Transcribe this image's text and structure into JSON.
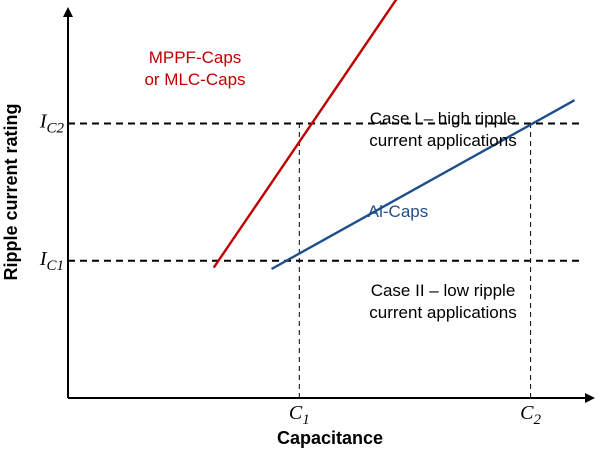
{
  "chart_data": {
    "type": "line",
    "title": "",
    "xlabel": "Capacitance",
    "ylabel": "Ripple current rating",
    "x_ticks": [
      {
        "main": "C",
        "sub": "1",
        "x": 1
      },
      {
        "main": "C",
        "sub": "2",
        "x": 2
      }
    ],
    "y_ticks": [
      {
        "main": "I",
        "sub": "C1",
        "y": 1
      },
      {
        "main": "I",
        "sub": "C2",
        "y": 2
      }
    ],
    "xlim": [
      0,
      2.3
    ],
    "ylim": [
      0,
      2.9
    ],
    "grid": false,
    "reference_lines": [
      {
        "orientation": "horizontal",
        "value": 2,
        "style": "dashed",
        "extent": "full"
      },
      {
        "orientation": "horizontal",
        "value": 1,
        "style": "dashed",
        "extent": "full"
      },
      {
        "orientation": "vertical",
        "value": 1,
        "style": "dashed",
        "extent": "to-crossing"
      },
      {
        "orientation": "vertical",
        "value": 2,
        "style": "dashed",
        "extent": "to-crossing"
      }
    ],
    "series": [
      {
        "name": "MPPF-Caps or MLC-Caps",
        "color": "#c00000",
        "points": [
          [
            0.63,
            0.95
          ],
          [
            1.45,
            2.98
          ]
        ]
      },
      {
        "name": "Al-Caps",
        "color": "#1f4e8c",
        "points": [
          [
            0.88,
            0.94
          ],
          [
            2.19,
            2.17
          ]
        ]
      }
    ],
    "annotations": [
      {
        "lines": [
          "MPPF-Caps",
          "or MLC-Caps"
        ],
        "color": "#c00000",
        "near": "red line, upper left"
      },
      {
        "lines": [
          "Al-Caps"
        ],
        "color": "#1f4e8c",
        "near": "blue line, middle"
      },
      {
        "lines": [
          "Case I – high ripple",
          "current applications"
        ],
        "color": "#000000",
        "near": "above I_C2 line, right"
      },
      {
        "lines": [
          "Case II – low ripple",
          "current applications"
        ],
        "color": "#000000",
        "near": "above I_C1 line, right"
      }
    ]
  }
}
